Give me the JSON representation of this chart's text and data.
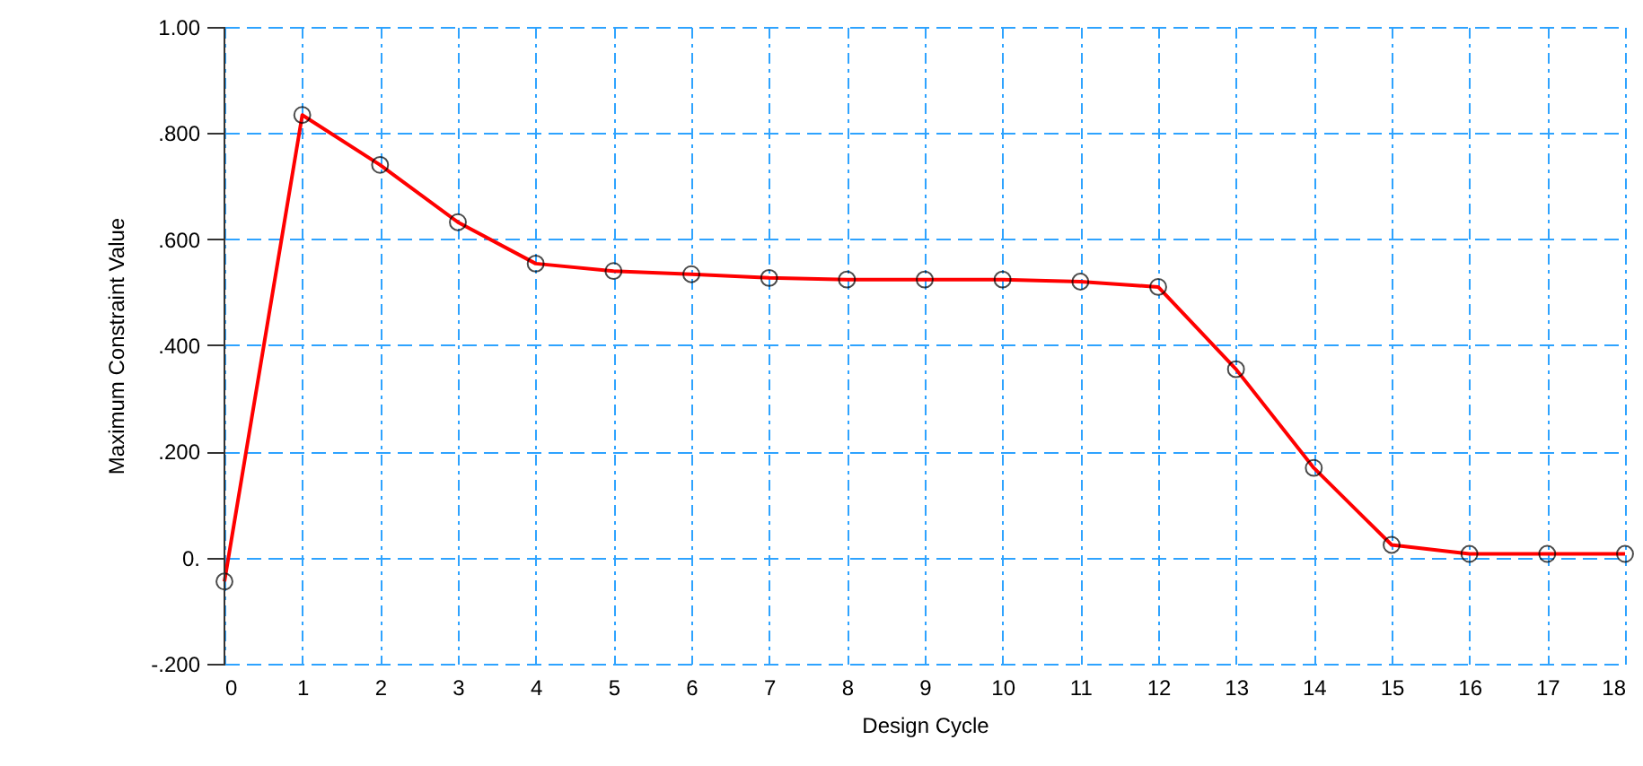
{
  "chart_data": {
    "type": "line",
    "xlabel": "Design Cycle",
    "ylabel": "Maximum Constraint Value",
    "x": [
      0,
      1,
      2,
      3,
      4,
      5,
      6,
      7,
      8,
      9,
      10,
      11,
      12,
      13,
      14,
      15,
      16,
      17,
      18
    ],
    "series": [
      {
        "color": "#ff0000",
        "values": [
          -0.045,
          0.834,
          0.74,
          0.632,
          0.554,
          0.54,
          0.534,
          0.527,
          0.524,
          0.524,
          0.524,
          0.52,
          0.51,
          0.355,
          0.169,
          0.024,
          0.007,
          0.007,
          0.007
        ]
      }
    ],
    "xlim": [
      0,
      18
    ],
    "xticks": [
      0,
      1,
      2,
      3,
      4,
      5,
      6,
      7,
      8,
      9,
      10,
      11,
      12,
      13,
      14,
      15,
      16,
      17,
      18
    ],
    "ylim": [
      -0.2,
      1.0
    ],
    "yticks": [
      {
        "value": -0.2,
        "label": "-.200"
      },
      {
        "value": 0,
        "label": "0."
      },
      {
        "value": 0.2,
        "label": ".200"
      },
      {
        "value": 0.4,
        "label": ".400"
      },
      {
        "value": 0.6,
        "label": ".600"
      },
      {
        "value": 0.8,
        "label": ".800"
      },
      {
        "value": 1.0,
        "label": "1.00"
      }
    ],
    "grid": true,
    "marker": "circle",
    "line_style": "solid"
  }
}
